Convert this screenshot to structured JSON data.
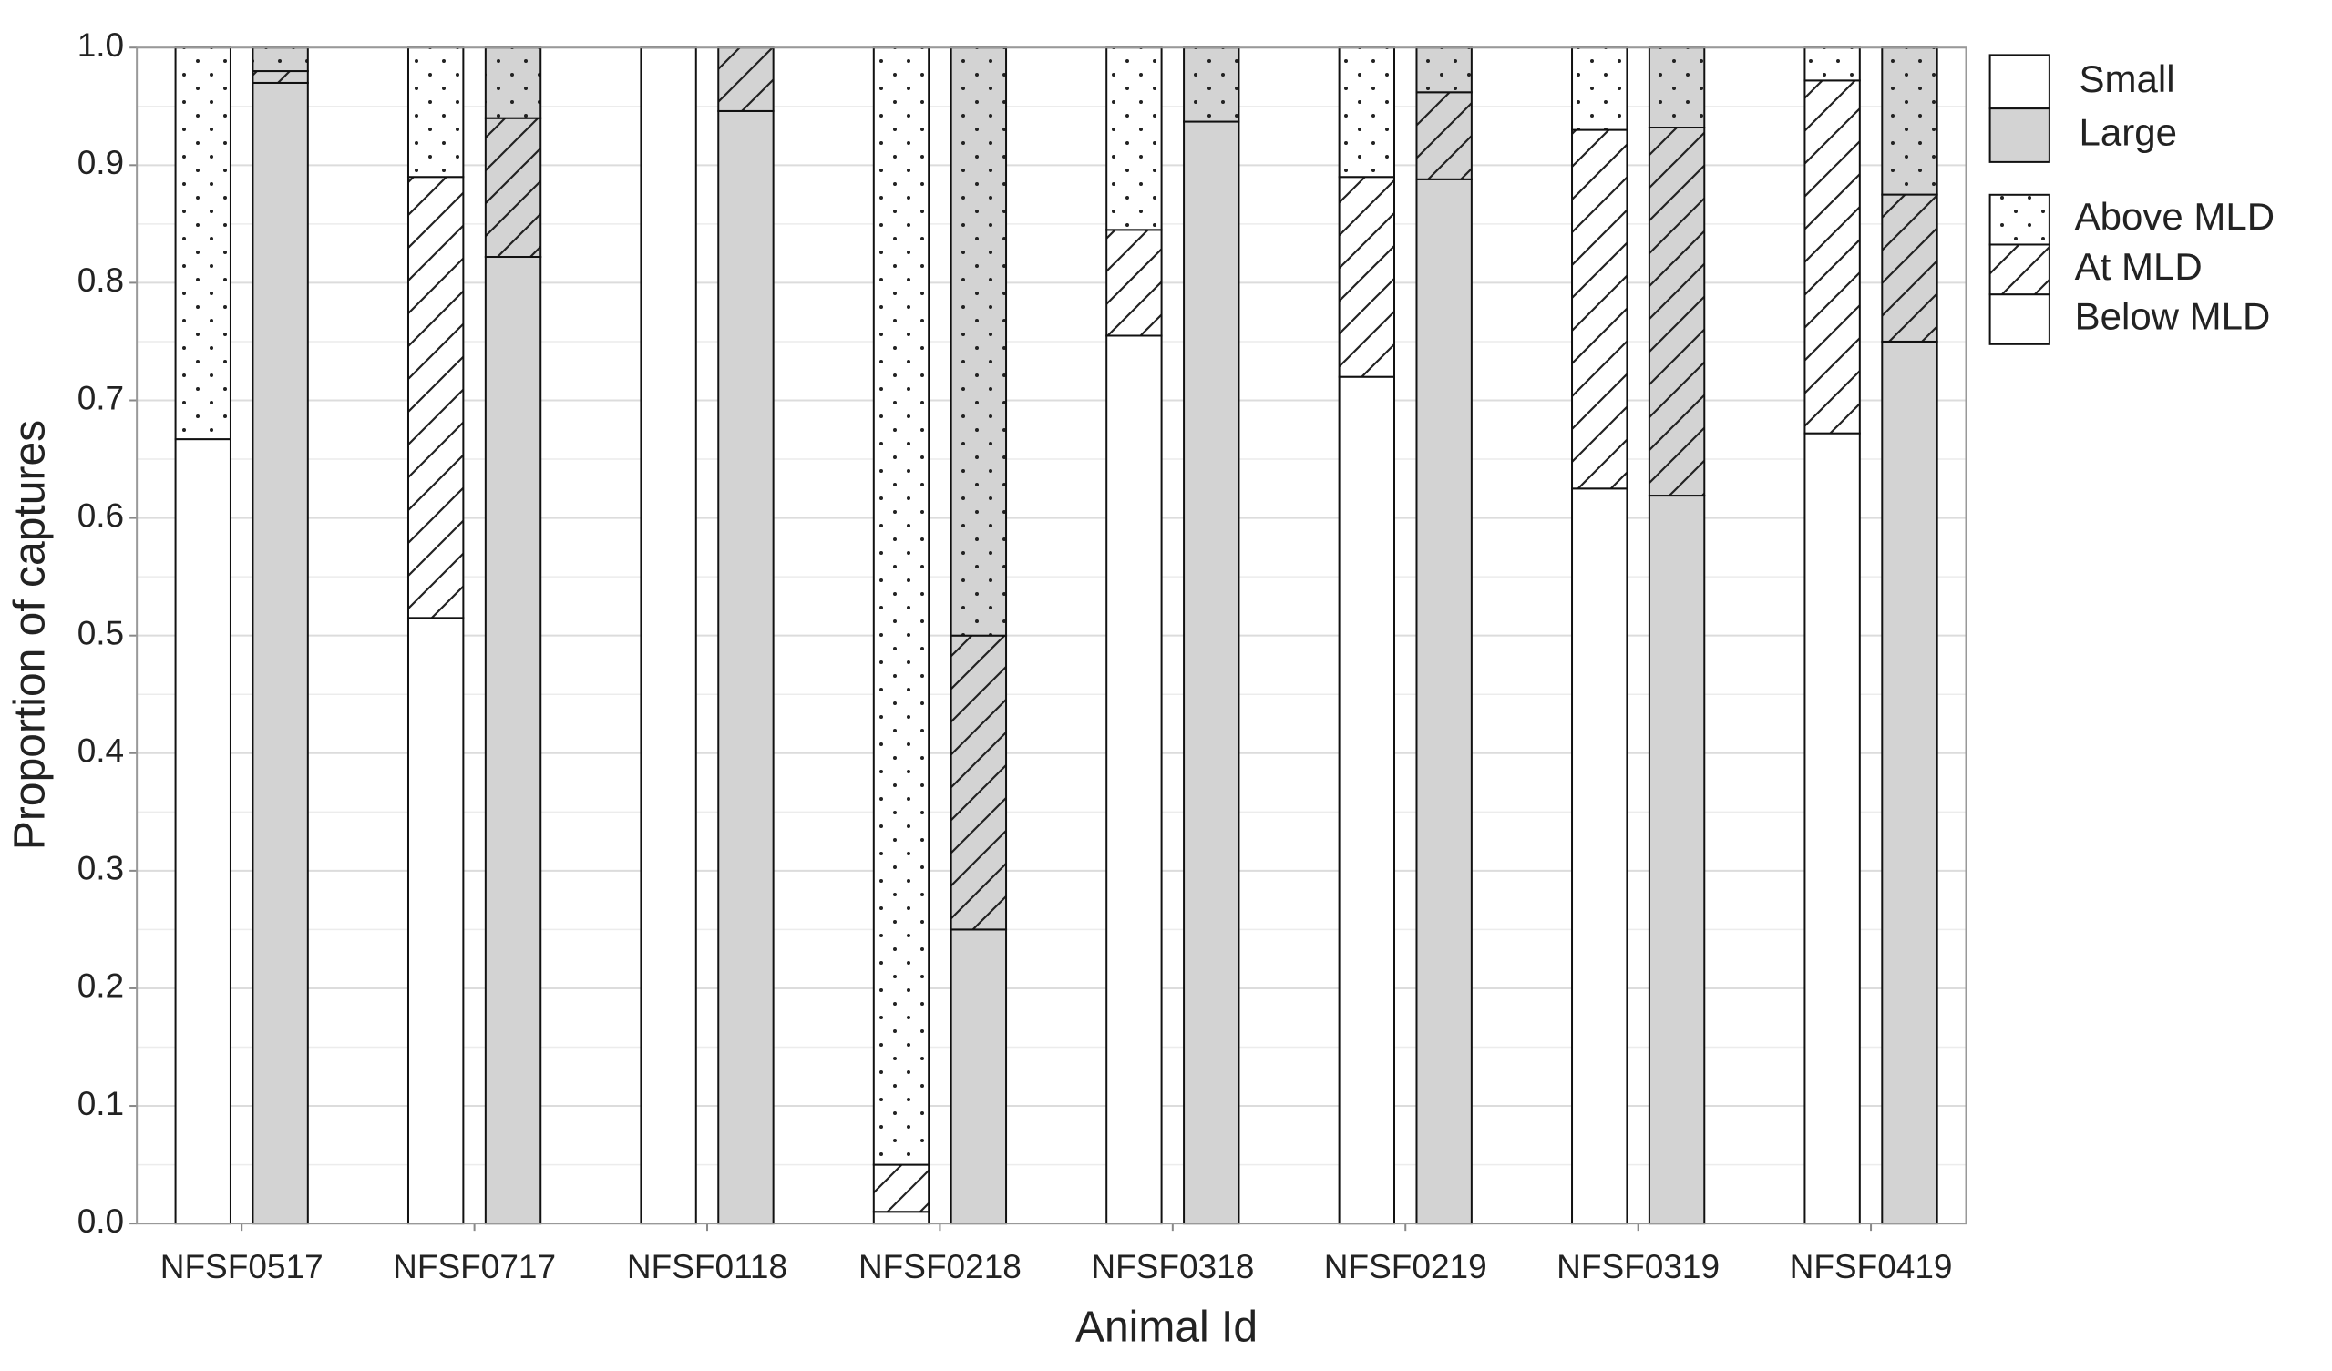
{
  "chart_data": {
    "type": "grouped-stacked-bar",
    "x_label": "Animal Id",
    "y_label": "Proportion of captures",
    "categories": [
      "NFSF0517",
      "NFSF0717",
      "NFSF0118",
      "NFSF0218",
      "NFSF0318",
      "NFSF0219",
      "NFSF0319",
      "NFSF0419"
    ],
    "stack_levels": [
      {
        "name": "Below MLD",
        "pattern": "none"
      },
      {
        "name": "At MLD",
        "pattern": "hatch"
      },
      {
        "name": "Above MLD",
        "pattern": "dots"
      }
    ],
    "series": [
      {
        "name": "Small",
        "color": "#ffffff",
        "values": [
          [
            0.667,
            0.515,
            1.0,
            0.01,
            0.755,
            0.72,
            0.625,
            0.672
          ],
          [
            0,
            0.375,
            0,
            0.04,
            0.09,
            0.17,
            0.305,
            0.3
          ],
          [
            0.333,
            0.11,
            0,
            0.95,
            0.155,
            0.11,
            0.07,
            0.028
          ]
        ]
      },
      {
        "name": "Large",
        "color": "#d3d3d3",
        "values": [
          [
            0.97,
            0.822,
            0.946,
            0.25,
            0.937,
            0.888,
            0.619,
            0.75
          ],
          [
            0.01,
            0.118,
            0.054,
            0.25,
            0,
            0.074,
            0.313,
            0.125
          ],
          [
            0.02,
            0.06,
            0,
            0.5,
            0.063,
            0.038,
            0.068,
            0.125
          ]
        ]
      }
    ],
    "ylim": [
      0,
      1
    ],
    "yticks": [
      {
        "value": 0,
        "label": "0.0"
      },
      {
        "value": 0.1,
        "label": "0.1"
      },
      {
        "value": 0.2,
        "label": "0.2"
      },
      {
        "value": 0.3,
        "label": "0.3"
      },
      {
        "value": 0.4,
        "label": "0.4"
      },
      {
        "value": 0.5,
        "label": "0.5"
      },
      {
        "value": 0.6,
        "label": "0.6"
      },
      {
        "value": 0.7,
        "label": "0.7"
      },
      {
        "value": 0.8,
        "label": "0.8"
      },
      {
        "value": 0.9,
        "label": "0.9"
      },
      {
        "value": 1,
        "label": "1.0"
      }
    ],
    "grid": true,
    "legend": "right"
  }
}
